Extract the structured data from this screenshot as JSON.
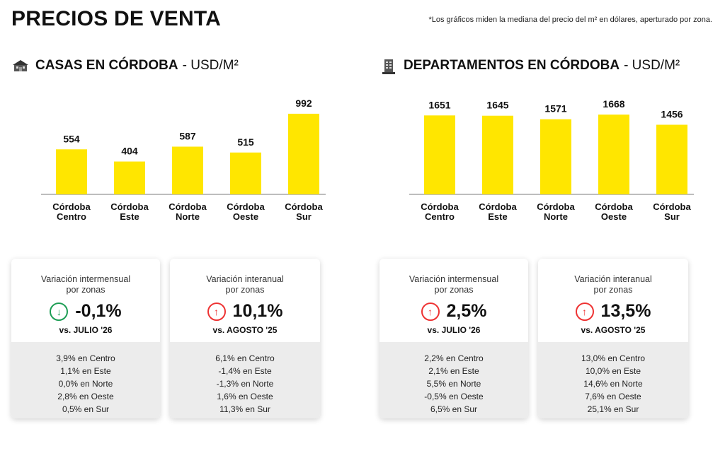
{
  "main_title": "PRECIOS DE VENTA",
  "footnote": "*Los gráficos miden la mediana del precio del m² en dólares, aperturado por zona.",
  "colors": {
    "bar": "#FFE600",
    "axis": "#bdbdbd",
    "up": "#e33333",
    "down": "#1e9e55"
  },
  "chart_data": [
    {
      "type": "bar",
      "title": "CASAS EN CÓRDOBA",
      "unit": "- USD/M²",
      "icon": "house-icon",
      "categories": [
        "Córdoba Centro",
        "Córdoba Este",
        "Córdoba Norte",
        "Córdoba Oeste",
        "Córdoba Sur"
      ],
      "categories_lines": [
        [
          "Córdoba",
          "Centro"
        ],
        [
          "Córdoba",
          "Este"
        ],
        [
          "Córdoba",
          "Norte"
        ],
        [
          "Córdoba",
          "Oeste"
        ],
        [
          "Córdoba",
          "Sur"
        ]
      ],
      "values": [
        554,
        404,
        587,
        515,
        992
      ],
      "ylim": [
        0,
        1000
      ],
      "grid": false
    },
    {
      "type": "bar",
      "title": "DEPARTAMENTOS EN CÓRDOBA",
      "unit": "- USD/M²",
      "icon": "building-icon",
      "categories": [
        "Córdoba Centro",
        "Córdoba Este",
        "Córdoba Norte",
        "Córdoba Oeste",
        "Córdoba Sur"
      ],
      "categories_lines": [
        [
          "Córdoba",
          "Centro"
        ],
        [
          "Córdoba",
          "Este"
        ],
        [
          "Córdoba",
          "Norte"
        ],
        [
          "Córdoba",
          "Oeste"
        ],
        [
          "Córdoba",
          "Sur"
        ]
      ],
      "values": [
        1651,
        1645,
        1571,
        1668,
        1456
      ],
      "ylim": [
        0,
        1700
      ],
      "grid": false
    }
  ],
  "cards": {
    "casas_mensual": {
      "subtitle_1": "Variación intermensual",
      "subtitle_2": "por zonas",
      "direction_icon": "arrow-down-icon",
      "arrow": "↓",
      "value": "-0,1%",
      "vs": "vs. JULIO '26",
      "zones": [
        "3,9%  en Centro",
        "1,1%  en Este",
        "0,0%  en Norte",
        "2,8%  en Oeste",
        "0,5%  en Sur"
      ]
    },
    "casas_anual": {
      "subtitle_1": "Variación interanual",
      "subtitle_2": "por zonas",
      "direction_icon": "arrow-up-icon",
      "arrow": "↑",
      "value": "10,1%",
      "vs": "vs. AGOSTO '25",
      "zones": [
        "6,1%  en Centro",
        "-1,4%  en Este",
        "-1,3%  en Norte",
        "1,6%  en Oeste",
        "11,3%  en Sur"
      ]
    },
    "deptos_mensual": {
      "subtitle_1": "Variación intermensual",
      "subtitle_2": "por zonas",
      "direction_icon": "arrow-up-icon",
      "arrow": "↑",
      "value": "2,5%",
      "vs": "vs. JULIO '26",
      "zones": [
        "2,2%  en Centro",
        "2,1%  en Este",
        "5,5%  en Norte",
        "-0,5%  en Oeste",
        "6,5%  en Sur"
      ]
    },
    "deptos_anual": {
      "subtitle_1": "Variación interanual",
      "subtitle_2": "por zonas",
      "direction_icon": "arrow-up-icon",
      "arrow": "↑",
      "value": "13,5%",
      "vs": "vs. AGOSTO '25",
      "zones": [
        "13,0%  en Centro",
        "10,0%  en Este",
        "14,6%  en Norte",
        "7,6%  en Oeste",
        "25,1%  en Sur"
      ]
    }
  }
}
